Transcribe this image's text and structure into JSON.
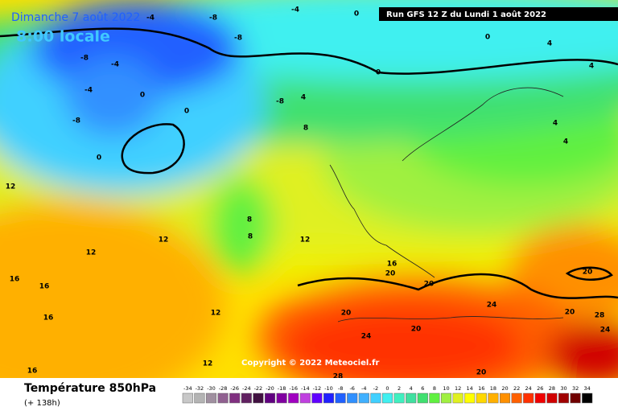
{
  "header": {
    "date": "Dimanche 7 août 2022",
    "time": "8:00 locale",
    "run": "Run GFS 12 Z du Lundi 1 août 2022"
  },
  "map": {
    "copyright": "Copyright © 2022 Meteociel.fr",
    "labels": [
      -4,
      -8,
      -4,
      0,
      -8,
      -4,
      -8,
      -4,
      0,
      -8,
      0,
      0,
      4,
      8,
      -8,
      0,
      0,
      4,
      4,
      4,
      4,
      12,
      12,
      12,
      12,
      8,
      8,
      12,
      16,
      16,
      16,
      16,
      16,
      20,
      20,
      20,
      20,
      24,
      24,
      20,
      20,
      28,
      24,
      28,
      20,
      12
    ]
  },
  "footer": {
    "title": "Température 850hPa",
    "lead": "(+ 138h)"
  },
  "scale": {
    "values": [
      -34,
      -32,
      -30,
      -28,
      -26,
      -24,
      -22,
      -20,
      -18,
      -16,
      -14,
      -12,
      -10,
      -8,
      -6,
      -4,
      -2,
      0,
      2,
      4,
      6,
      8,
      10,
      12,
      14,
      16,
      18,
      20,
      22,
      24,
      26,
      28,
      30,
      32,
      34
    ],
    "colors": [
      "#c8c8c8",
      "#b4b4b4",
      "#a090a0",
      "#906090",
      "#803080",
      "#602060",
      "#401040",
      "#600080",
      "#8000a0",
      "#a000c0",
      "#c040e0",
      "#6000ff",
      "#2020ff",
      "#2060ff",
      "#3090ff",
      "#40b0ff",
      "#40d0ff",
      "#40f0f0",
      "#40f0c0",
      "#40e0a0",
      "#40e070",
      "#60f040",
      "#a0f040",
      "#e0f020",
      "#ffff00",
      "#ffd800",
      "#ffb000",
      "#ff9000",
      "#ff6000",
      "#ff3000",
      "#f00000",
      "#d00000",
      "#a00000",
      "#700000",
      "#000000"
    ]
  }
}
